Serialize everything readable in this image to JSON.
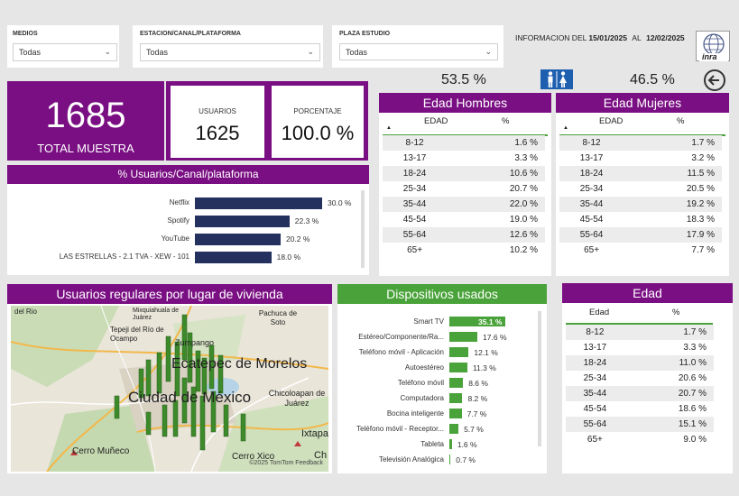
{
  "filters": {
    "medios": {
      "label": "MEDIOS",
      "value": "Todas"
    },
    "estacion": {
      "label": "ESTACION/CANAL/PLATAFORMA",
      "value": "Todas"
    },
    "plaza": {
      "label": "PLAZA ESTUDIO",
      "value": "Todas"
    }
  },
  "info": {
    "prefix": "INFORMACION DEL",
    "from": "15/01/2025",
    "al": "AL",
    "to": "12/02/2025",
    "logo": "inra"
  },
  "gender": {
    "men_pct": "53.5 %",
    "women_pct": "46.5 %"
  },
  "total": {
    "value": "1685",
    "label": "TOTAL MUESTRA"
  },
  "usuarios": {
    "label": "USUARIOS",
    "value": "1625"
  },
  "porcentaje": {
    "label": "PORCENTAJE",
    "value": "100.0 %"
  },
  "canal": {
    "title": "% Usuarios/Canal/plataforma",
    "items": [
      {
        "label": "Netflix",
        "value": 30.0,
        "text": "30.0 %"
      },
      {
        "label": "Spotify",
        "value": 22.3,
        "text": "22.3 %"
      },
      {
        "label": "YouTube",
        "value": 20.2,
        "text": "20.2 %"
      },
      {
        "label": "LAS ESTRELLAS - 2.1 TVA - XEW - 101",
        "value": 18.0,
        "text": "18.0 %"
      }
    ]
  },
  "hombres": {
    "title": "Edad Hombres",
    "col1": "EDAD",
    "col2": "%",
    "rows": [
      [
        "8-12",
        "1.6 %"
      ],
      [
        "13-17",
        "3.3 %"
      ],
      [
        "18-24",
        "10.6 %"
      ],
      [
        "25-34",
        "20.7 %"
      ],
      [
        "35-44",
        "22.0 %"
      ],
      [
        "45-54",
        "19.0 %"
      ],
      [
        "55-64",
        "12.6 %"
      ],
      [
        "65+",
        "10.2 %"
      ]
    ]
  },
  "mujeres": {
    "title": "Edad Mujeres",
    "col1": "EDAD",
    "col2": "%",
    "rows": [
      [
        "8-12",
        "1.7 %"
      ],
      [
        "13-17",
        "3.2 %"
      ],
      [
        "18-24",
        "11.5 %"
      ],
      [
        "25-34",
        "20.5 %"
      ],
      [
        "35-44",
        "19.2 %"
      ],
      [
        "45-54",
        "18.3 %"
      ],
      [
        "55-64",
        "17.9 %"
      ],
      [
        "65+",
        "7.7 %"
      ]
    ]
  },
  "map": {
    "title": "Usuarios regulares por lugar de vivienda",
    "labels": {
      "a": "del Rio",
      "b": "Mixquiahuala de Juárez",
      "c": "Pachuca de Soto",
      "d": "Tepeji del Río de Ocampo",
      "e": "Zumpango",
      "f": "Ecatepec de Morelos",
      "g": "Ciudad de México",
      "h": "Chicoloapan de Juárez",
      "i": "Cerro Muñeco",
      "j": "Cerro Xico",
      "k": "Ixtapa",
      "l": "Ch"
    },
    "credit": "©2025 TomTom Feedback"
  },
  "dispositivos": {
    "title": "Dispositivos usados",
    "items": [
      {
        "label": "Smart TV",
        "value": 35.1,
        "text": "35.1 %"
      },
      {
        "label": "Estéreo/Componente/Ra...",
        "value": 17.6,
        "text": "17.6 %"
      },
      {
        "label": "Teléfono móvil - Aplicación",
        "value": 12.1,
        "text": "12.1 %"
      },
      {
        "label": "Autoestéreo",
        "value": 11.3,
        "text": "11.3 %"
      },
      {
        "label": "Teléfono móvil",
        "value": 8.6,
        "text": "8.6 %"
      },
      {
        "label": "Computadora",
        "value": 8.2,
        "text": "8.2 %"
      },
      {
        "label": "Bocina inteligente",
        "value": 7.7,
        "text": "7.7 %"
      },
      {
        "label": "Teléfono móvil - Receptor...",
        "value": 5.7,
        "text": "5.7 %"
      },
      {
        "label": "Tableta",
        "value": 1.6,
        "text": "1.6 %"
      },
      {
        "label": "Televisión Analógica",
        "value": 0.7,
        "text": "0.7 %"
      }
    ]
  },
  "edad": {
    "title": "Edad",
    "col1": "Edad",
    "col2": "%",
    "rows": [
      [
        "8-12",
        "1.7 %"
      ],
      [
        "13-17",
        "3.3 %"
      ],
      [
        "18-24",
        "11.0 %"
      ],
      [
        "25-34",
        "20.6 %"
      ],
      [
        "35-44",
        "20.7 %"
      ],
      [
        "45-54",
        "18.6 %"
      ],
      [
        "55-64",
        "15.1 %"
      ],
      [
        "65+",
        "9.0 %"
      ]
    ]
  }
}
